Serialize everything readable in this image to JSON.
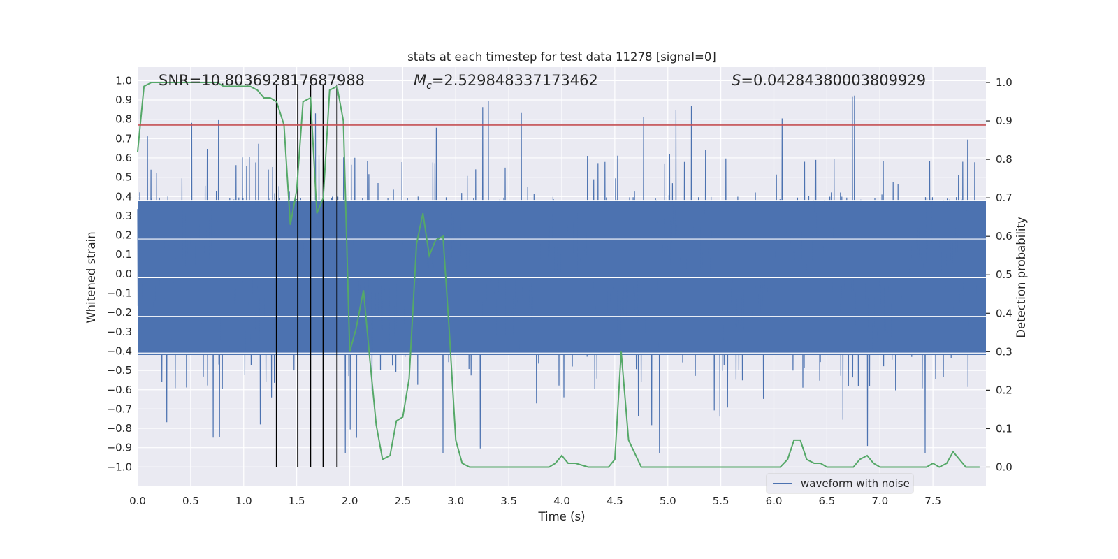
{
  "chart_data": {
    "type": "line",
    "title": "stats at each timestep for test data 11278 [signal=0]",
    "xlabel": "Time (s)",
    "ylabel": "Whitened strain",
    "y2label": "Detection probability",
    "xlim": [
      0.0,
      8.0
    ],
    "ylim": [
      -1.1,
      1.07
    ],
    "y2lim": [
      -0.05,
      1.04
    ],
    "x_ticks": [
      0.0,
      0.5,
      1.0,
      1.5,
      2.0,
      2.5,
      3.0,
      3.5,
      4.0,
      4.5,
      5.0,
      5.5,
      6.0,
      6.5,
      7.0,
      7.5
    ],
    "x_tick_labels": [
      "0.0",
      "0.5",
      "1.0",
      "1.5",
      "2.0",
      "2.5",
      "3.0",
      "3.5",
      "4.0",
      "4.5",
      "5.0",
      "5.5",
      "6.0",
      "6.5",
      "7.0",
      "7.5"
    ],
    "y_ticks": [
      1.0,
      0.9,
      0.8,
      0.7,
      0.6,
      0.5,
      0.4,
      0.3,
      0.2,
      0.1,
      0.0,
      -0.1,
      -0.2,
      -0.3,
      -0.4,
      -0.5,
      -0.6,
      -0.7,
      -0.8,
      -0.9,
      -1.0
    ],
    "y_tick_labels": [
      "1.0",
      "0.9",
      "0.8",
      "0.7",
      "0.6",
      "0.5",
      "0.4",
      "0.3",
      "0.2",
      "0.1",
      "0.0",
      "−0.1",
      "−0.2",
      "−0.3",
      "−0.4",
      "−0.5",
      "−0.6",
      "−0.7",
      "−0.8",
      "−0.9",
      "−1.0"
    ],
    "y2_ticks": [
      1.0,
      0.9,
      0.8,
      0.7,
      0.6,
      0.5,
      0.4,
      0.3,
      0.2,
      0.1,
      0.0
    ],
    "y2_tick_labels": [
      "1.0",
      "0.9",
      "0.8",
      "0.7",
      "0.6",
      "0.5",
      "0.4",
      "0.3",
      "0.2",
      "0.1",
      "0.0"
    ],
    "annotations": {
      "snr": "SNR=10.803692817687988",
      "mc_symbol": "M",
      "mc_subscript": "c",
      "mc_value": "=2.529848337173462",
      "s_symbol": "S",
      "s_value": "=0.04284380003809929"
    },
    "legend": {
      "label": "waveform with noise",
      "placement": "lower-right"
    },
    "threshold_line": {
      "y": 0.77,
      "color": "#c44e52"
    },
    "vertical_markers": [
      1.31,
      1.51,
      1.63,
      1.75,
      1.88
    ],
    "waveform_envelope": {
      "color": "#4c72b0",
      "typical_upper": 0.38,
      "typical_lower": -0.42,
      "spike_max": 0.97,
      "spike_min": -0.93
    },
    "series": [
      {
        "name": "detection probability",
        "axis": "y2",
        "color": "#55a868",
        "x": [
          0.0,
          0.06,
          0.13,
          0.19,
          0.25,
          0.31,
          0.38,
          0.44,
          0.5,
          0.56,
          0.63,
          0.69,
          0.75,
          0.81,
          0.88,
          0.94,
          1.0,
          1.06,
          1.13,
          1.19,
          1.25,
          1.31,
          1.38,
          1.44,
          1.5,
          1.56,
          1.63,
          1.69,
          1.75,
          1.81,
          1.88,
          1.94,
          2.0,
          2.06,
          2.13,
          2.19,
          2.25,
          2.31,
          2.38,
          2.44,
          2.5,
          2.56,
          2.63,
          2.69,
          2.75,
          2.81,
          2.88,
          2.94,
          3.0,
          3.06,
          3.13,
          3.25,
          3.5,
          3.75,
          3.88,
          3.94,
          4.0,
          4.06,
          4.13,
          4.25,
          4.38,
          4.44,
          4.5,
          4.56,
          4.63,
          4.75,
          4.81,
          4.88,
          5.0,
          5.06,
          5.13,
          5.25,
          5.5,
          5.75,
          5.94,
          6.0,
          6.06,
          6.13,
          6.19,
          6.25,
          6.31,
          6.38,
          6.44,
          6.5,
          6.63,
          6.69,
          6.75,
          6.81,
          6.88,
          6.94,
          7.0,
          7.06,
          7.13,
          7.19,
          7.25,
          7.31,
          7.38,
          7.44,
          7.5,
          7.56,
          7.63,
          7.69,
          7.75,
          7.81,
          7.88,
          7.94
        ],
        "y": [
          0.82,
          0.99,
          1.0,
          1.0,
          1.0,
          1.0,
          1.0,
          1.0,
          1.0,
          1.0,
          1.0,
          1.0,
          1.0,
          0.99,
          0.99,
          0.99,
          0.99,
          0.99,
          0.98,
          0.96,
          0.96,
          0.95,
          0.89,
          0.63,
          0.72,
          0.95,
          0.96,
          0.66,
          0.7,
          0.98,
          0.99,
          0.9,
          0.3,
          0.36,
          0.46,
          0.28,
          0.11,
          0.02,
          0.03,
          0.12,
          0.13,
          0.23,
          0.58,
          0.66,
          0.55,
          0.59,
          0.6,
          0.35,
          0.07,
          0.01,
          0.0,
          0.0,
          0.0,
          0.0,
          0.0,
          0.01,
          0.03,
          0.01,
          0.01,
          0.0,
          0.0,
          0.0,
          0.02,
          0.3,
          0.07,
          0.0,
          0.0,
          0.0,
          0.0,
          0.0,
          0.0,
          0.0,
          0.0,
          0.0,
          0.0,
          0.0,
          0.0,
          0.02,
          0.07,
          0.07,
          0.02,
          0.01,
          0.01,
          0.0,
          0.0,
          0.0,
          0.0,
          0.02,
          0.03,
          0.01,
          0.0,
          0.0,
          0.0,
          0.0,
          0.0,
          0.0,
          0.0,
          0.0,
          0.01,
          0.0,
          0.01,
          0.04,
          0.02,
          0.0,
          0.0,
          0.0
        ]
      }
    ]
  },
  "colors": {
    "background": "#eaeaf2",
    "grid": "#ffffff",
    "waveform": "#4c72b0",
    "probability": "#55a868",
    "threshold": "#c44e52",
    "marker": "#000000"
  }
}
